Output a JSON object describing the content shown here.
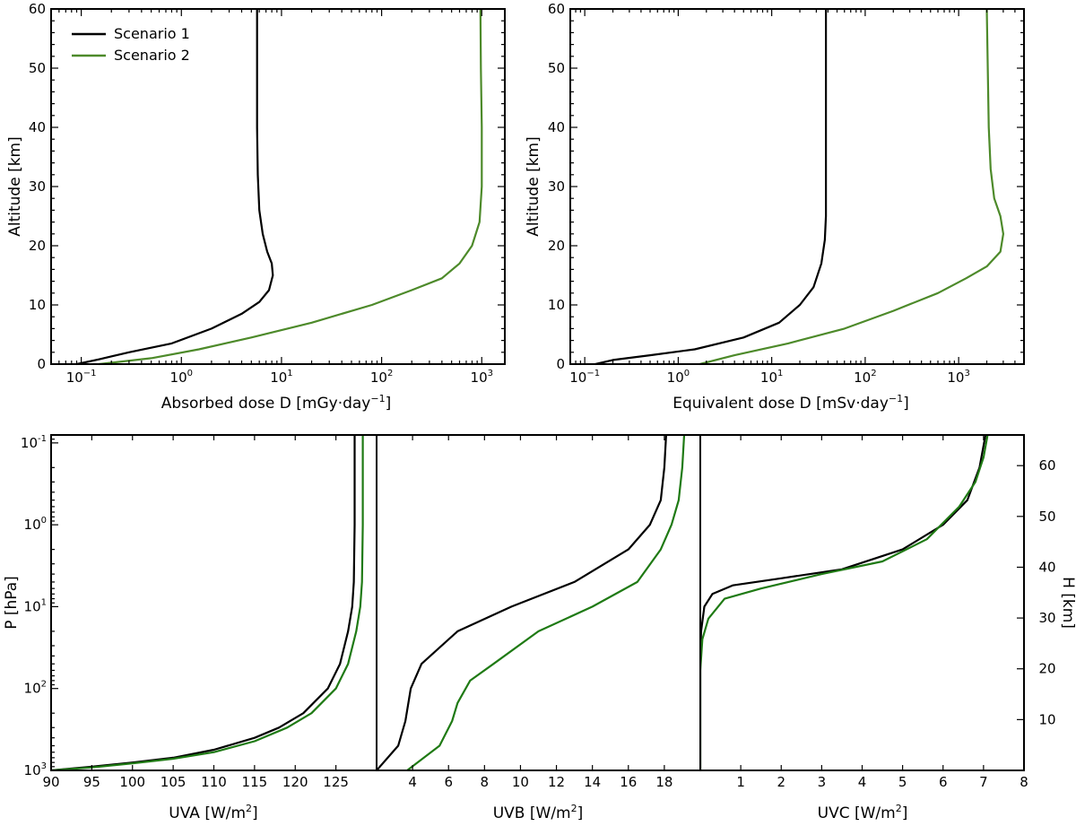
{
  "colors": {
    "scenario1": "#000000",
    "scenario2_top": "#4d8a2a",
    "scenario2_bottom": "#1f7a14"
  },
  "chart_data": [
    {
      "id": "absorbed",
      "type": "line",
      "xscale": "log",
      "xlim": [
        0.05,
        1700
      ],
      "ylim": [
        0,
        60
      ],
      "xlabel": "Absorbed dose D [mGy·day",
      "xlabel_sup": "−1",
      "xlabel_end": "]",
      "ylabel": "Altitude [km]",
      "xticks": [
        {
          "v": 0.1,
          "m": "10",
          "e": "−1"
        },
        {
          "v": 1,
          "m": "10",
          "e": "0"
        },
        {
          "v": 10,
          "m": "10",
          "e": "1"
        },
        {
          "v": 100,
          "m": "10",
          "e": "2"
        },
        {
          "v": 1000,
          "m": "10",
          "e": "3"
        }
      ],
      "yticks": [
        "0",
        "10",
        "20",
        "30",
        "40",
        "50",
        "60"
      ],
      "legend": {
        "position": "top-left",
        "entries": [
          "Scenario 1",
          "Scenario 2"
        ]
      },
      "series": [
        {
          "name": "Scenario 1",
          "points": [
            [
              0.09,
              0
            ],
            [
              0.15,
              0.8
            ],
            [
              0.3,
              2
            ],
            [
              0.8,
              3.5
            ],
            [
              2,
              6
            ],
            [
              4,
              8.5
            ],
            [
              6,
              10.5
            ],
            [
              7.5,
              12.5
            ],
            [
              8.2,
              15
            ],
            [
              8,
              17
            ],
            [
              7.2,
              19
            ],
            [
              6.5,
              22
            ],
            [
              6,
              26
            ],
            [
              5.8,
              32
            ],
            [
              5.7,
              40
            ],
            [
              5.7,
              50
            ],
            [
              5.7,
              60
            ]
          ]
        },
        {
          "name": "Scenario 2",
          "points": [
            [
              0.15,
              0
            ],
            [
              0.5,
              1
            ],
            [
              1.5,
              2.5
            ],
            [
              5,
              4.5
            ],
            [
              20,
              7
            ],
            [
              80,
              10
            ],
            [
              200,
              12.5
            ],
            [
              400,
              14.5
            ],
            [
              600,
              17
            ],
            [
              800,
              20
            ],
            [
              950,
              24
            ],
            [
              1000,
              30
            ],
            [
              1000,
              40
            ],
            [
              980,
              50
            ],
            [
              970,
              60
            ]
          ]
        }
      ]
    },
    {
      "id": "equivalent",
      "type": "line",
      "xscale": "log",
      "xlim": [
        0.07,
        5000
      ],
      "ylim": [
        0,
        60
      ],
      "xlabel": "Equivalent dose D [mSv·day",
      "xlabel_sup": "−1",
      "xlabel_end": "]",
      "ylabel": "Altitude [km]",
      "xticks": [
        {
          "v": 0.1,
          "m": "10",
          "e": "−1"
        },
        {
          "v": 1,
          "m": "10",
          "e": "0"
        },
        {
          "v": 10,
          "m": "10",
          "e": "1"
        },
        {
          "v": 100,
          "m": "10",
          "e": "2"
        },
        {
          "v": 1000,
          "m": "10",
          "e": "3"
        }
      ],
      "yticks": [
        "0",
        "10",
        "20",
        "30",
        "40",
        "50",
        "60"
      ],
      "series": [
        {
          "name": "Scenario 1",
          "points": [
            [
              0.13,
              0
            ],
            [
              0.2,
              0.7
            ],
            [
              0.5,
              1.5
            ],
            [
              1.5,
              2.5
            ],
            [
              5,
              4.5
            ],
            [
              12,
              7
            ],
            [
              20,
              10
            ],
            [
              28,
              13
            ],
            [
              34,
              17
            ],
            [
              37,
              21
            ],
            [
              38,
              25
            ],
            [
              38,
              30
            ],
            [
              38,
              40
            ],
            [
              38,
              50
            ],
            [
              38,
              60
            ]
          ]
        },
        {
          "name": "Scenario 2",
          "points": [
            [
              1.7,
              0
            ],
            [
              4,
              1.5
            ],
            [
              15,
              3.5
            ],
            [
              60,
              6
            ],
            [
              200,
              9
            ],
            [
              600,
              12
            ],
            [
              1200,
              14.5
            ],
            [
              2000,
              16.5
            ],
            [
              2800,
              19
            ],
            [
              3000,
              22
            ],
            [
              2800,
              25
            ],
            [
              2400,
              28
            ],
            [
              2200,
              33
            ],
            [
              2100,
              40
            ],
            [
              2050,
              50
            ],
            [
              2000,
              60
            ]
          ]
        }
      ]
    },
    {
      "id": "uva",
      "type": "line",
      "xscale": "linear",
      "xlim": [
        90,
        130
      ],
      "ylim_pressure_hpa": [
        0.08,
        1000
      ],
      "xlabel": "UVA [W/m",
      "xlabel_sup": "2",
      "xlabel_end": "]",
      "ylabel": "P [hPa]",
      "xticks": [
        "90",
        "95",
        "100",
        "105",
        "110",
        "115",
        "120",
        "125"
      ],
      "yticks": [
        {
          "v": 0.1,
          "m": "10",
          "e": "-1"
        },
        {
          "v": 1,
          "m": "10",
          "e": "0"
        },
        {
          "v": 10,
          "m": "10",
          "e": "1"
        },
        {
          "v": 100,
          "m": "10",
          "e": "2"
        },
        {
          "v": 1000,
          "m": "10",
          "e": "3"
        }
      ],
      "series": [
        {
          "name": "Scenario 1",
          "points": [
            [
              90,
              1000
            ],
            [
              95,
              900
            ],
            [
              100,
              800
            ],
            [
              105,
              700
            ],
            [
              110,
              560
            ],
            [
              115,
              400
            ],
            [
              118,
              300
            ],
            [
              121,
              200
            ],
            [
              124,
              100
            ],
            [
              125.5,
              50
            ],
            [
              126.5,
              20
            ],
            [
              127,
              10
            ],
            [
              127.2,
              5
            ],
            [
              127.3,
              1
            ],
            [
              127.3,
              0.08
            ]
          ]
        },
        {
          "name": "Scenario 2",
          "points": [
            [
              90,
              1000
            ],
            [
              95,
              920
            ],
            [
              100,
              820
            ],
            [
              105,
              720
            ],
            [
              110,
              600
            ],
            [
              115,
              440
            ],
            [
              119,
              300
            ],
            [
              122,
              200
            ],
            [
              125,
              100
            ],
            [
              126.5,
              50
            ],
            [
              127.5,
              20
            ],
            [
              128,
              10
            ],
            [
              128.2,
              5
            ],
            [
              128.3,
              1
            ],
            [
              128.3,
              0.08
            ]
          ]
        }
      ]
    },
    {
      "id": "uvb",
      "type": "line",
      "xscale": "linear",
      "xlim": [
        2,
        20
      ],
      "ylim_pressure_hpa": [
        0.08,
        1000
      ],
      "xlabel": "UVB [W/m",
      "xlabel_sup": "2",
      "xlabel_end": "]",
      "xticks": [
        "4",
        "6",
        "8",
        "10",
        "12",
        "14",
        "16",
        "18"
      ],
      "series": [
        {
          "name": "Scenario 1",
          "points": [
            [
              2,
              1000
            ],
            [
              3.2,
              500
            ],
            [
              3.6,
              250
            ],
            [
              3.9,
              100
            ],
            [
              4.5,
              50
            ],
            [
              6.5,
              20
            ],
            [
              9.5,
              10
            ],
            [
              13,
              5
            ],
            [
              16,
              2
            ],
            [
              17.2,
              1
            ],
            [
              17.8,
              0.5
            ],
            [
              18,
              0.2
            ],
            [
              18.1,
              0.08
            ]
          ]
        },
        {
          "name": "Scenario 2",
          "points": [
            [
              3.7,
              1000
            ],
            [
              5.5,
              500
            ],
            [
              6.2,
              250
            ],
            [
              6.5,
              150
            ],
            [
              7.2,
              80
            ],
            [
              8.5,
              50
            ],
            [
              11,
              20
            ],
            [
              14,
              10
            ],
            [
              16.5,
              5
            ],
            [
              17.8,
              2
            ],
            [
              18.4,
              1
            ],
            [
              18.8,
              0.5
            ],
            [
              19,
              0.2
            ],
            [
              19.1,
              0.08
            ]
          ]
        }
      ]
    },
    {
      "id": "uvc",
      "type": "line",
      "xscale": "linear",
      "xlim": [
        0,
        8
      ],
      "ylim_pressure_hpa": [
        0.08,
        1000
      ],
      "xlabel": "UVC [W/m",
      "xlabel_sup": "2",
      "xlabel_end": "]",
      "ylabel_right": "H [km]",
      "xticks": [
        "1",
        "2",
        "3",
        "4",
        "5",
        "6",
        "7",
        "8"
      ],
      "yticks_right": [
        "10",
        "20",
        "30",
        "40",
        "50",
        "60"
      ],
      "series": [
        {
          "name": "Scenario 1",
          "points": [
            [
              0,
              1000
            ],
            [
              0,
              50
            ],
            [
              0.02,
              20
            ],
            [
              0.1,
              10
            ],
            [
              0.3,
              7
            ],
            [
              0.8,
              5.5
            ],
            [
              2,
              4.5
            ],
            [
              3.5,
              3.5
            ],
            [
              5,
              2
            ],
            [
              6,
              1
            ],
            [
              6.6,
              0.5
            ],
            [
              6.9,
              0.2
            ],
            [
              7.05,
              0.08
            ]
          ]
        },
        {
          "name": "Scenario 2",
          "points": [
            [
              0,
              1000
            ],
            [
              0,
              60
            ],
            [
              0.05,
              25
            ],
            [
              0.2,
              14
            ],
            [
              0.6,
              8
            ],
            [
              1.5,
              6
            ],
            [
              3,
              4
            ],
            [
              4.5,
              2.8
            ],
            [
              5.6,
              1.5
            ],
            [
              6.4,
              0.6
            ],
            [
              6.8,
              0.3
            ],
            [
              7,
              0.15
            ],
            [
              7.1,
              0.08
            ]
          ]
        }
      ]
    }
  ]
}
